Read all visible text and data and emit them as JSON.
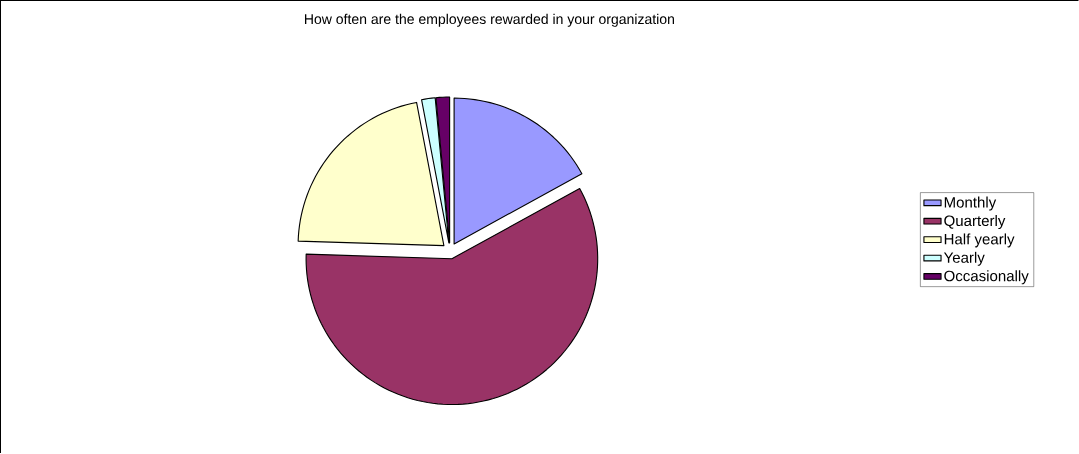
{
  "chart_data": {
    "type": "pie",
    "title": "How often are the employees rewarded in your organization",
    "categories": [
      "Monthly",
      "Quarterly",
      "Half yearly",
      "Yearly",
      "Occasionally"
    ],
    "values": [
      17,
      58.5,
      21.5,
      1.5,
      1.5
    ],
    "colors": [
      "#9999ff",
      "#993366",
      "#ffffcc",
      "#ccffff",
      "#660066"
    ],
    "legend": "right"
  }
}
